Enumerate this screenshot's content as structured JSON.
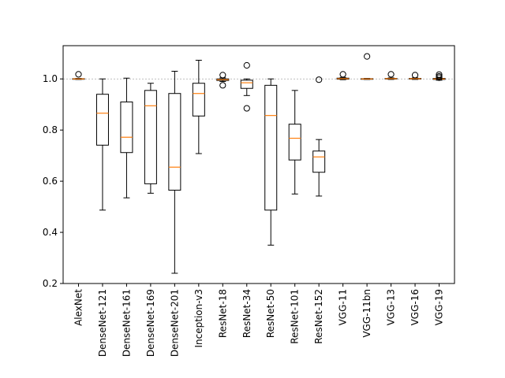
{
  "chart_data": {
    "type": "boxplot",
    "title": "",
    "xlabel": "",
    "ylabel": "",
    "ylim": [
      0.2,
      1.13
    ],
    "yticks": [
      0.2,
      0.4,
      0.6,
      0.8,
      1.0
    ],
    "ytick_labels": [
      "0.2",
      "0.4",
      "0.6",
      "0.8",
      "1.0"
    ],
    "reference_line": 1.0,
    "grid": false,
    "colors": {
      "box": "#000000",
      "median": "#ff7f0e",
      "reference": "#aaaaaa"
    },
    "categories": [
      "AlexNet",
      "DenseNet-121",
      "DenseNet-161",
      "DenseNet-169",
      "DenseNet-201",
      "Inception-v3",
      "ResNet-18",
      "ResNet-34",
      "ResNet-50",
      "ResNet-101",
      "ResNet-152",
      "VGG-11",
      "VGG-11bn",
      "VGG-13",
      "VGG-16",
      "VGG-19"
    ],
    "boxes": [
      {
        "whislo": 0.998,
        "q1": 0.999,
        "med": 1.0,
        "q3": 1.001,
        "whishi": 1.002,
        "fliers": [
          1.018
        ]
      },
      {
        "whislo": 0.487,
        "q1": 0.741,
        "med": 0.866,
        "q3": 0.94,
        "whishi": 1.0,
        "fliers": []
      },
      {
        "whislo": 0.535,
        "q1": 0.712,
        "med": 0.772,
        "q3": 0.91,
        "whishi": 1.003,
        "fliers": []
      },
      {
        "whislo": 0.553,
        "q1": 0.59,
        "med": 0.895,
        "q3": 0.955,
        "whishi": 0.983,
        "fliers": []
      },
      {
        "whislo": 0.24,
        "q1": 0.565,
        "med": 0.655,
        "q3": 0.943,
        "whishi": 1.03,
        "fliers": []
      },
      {
        "whislo": 0.708,
        "q1": 0.855,
        "med": 0.943,
        "q3": 0.983,
        "whishi": 1.073,
        "fliers": []
      },
      {
        "whislo": 0.99,
        "q1": 0.994,
        "med": 0.997,
        "q3": 1.0,
        "whishi": 1.004,
        "fliers": [
          1.015,
          0.975
        ]
      },
      {
        "whislo": 0.935,
        "q1": 0.963,
        "med": 0.985,
        "q3": 0.995,
        "whishi": 1.0,
        "fliers": [
          1.053,
          0.885
        ]
      },
      {
        "whislo": 0.35,
        "q1": 0.487,
        "med": 0.857,
        "q3": 0.975,
        "whishi": 1.0,
        "fliers": []
      },
      {
        "whislo": 0.55,
        "q1": 0.683,
        "med": 0.768,
        "q3": 0.823,
        "whishi": 0.955,
        "fliers": []
      },
      {
        "whislo": 0.542,
        "q1": 0.635,
        "med": 0.695,
        "q3": 0.718,
        "whishi": 0.763,
        "fliers": [
          0.997
        ]
      },
      {
        "whislo": 0.997,
        "q1": 0.999,
        "med": 1.001,
        "q3": 1.003,
        "whishi": 1.006,
        "fliers": [
          1.018
        ]
      },
      {
        "whislo": 0.998,
        "q1": 0.999,
        "med": 1.0,
        "q3": 1.001,
        "whishi": 1.002,
        "fliers": [
          1.088
        ]
      },
      {
        "whislo": 0.998,
        "q1": 1.0,
        "med": 1.001,
        "q3": 1.002,
        "whishi": 1.004,
        "fliers": [
          1.018
        ]
      },
      {
        "whislo": 0.998,
        "q1": 1.0,
        "med": 1.001,
        "q3": 1.002,
        "whishi": 1.004,
        "fliers": [
          1.015
        ]
      },
      {
        "whislo": 0.995,
        "q1": 0.998,
        "med": 1.0,
        "q3": 1.002,
        "whishi": 1.005,
        "fliers": [
          1.017,
          1.01,
          1.005
        ]
      }
    ]
  }
}
